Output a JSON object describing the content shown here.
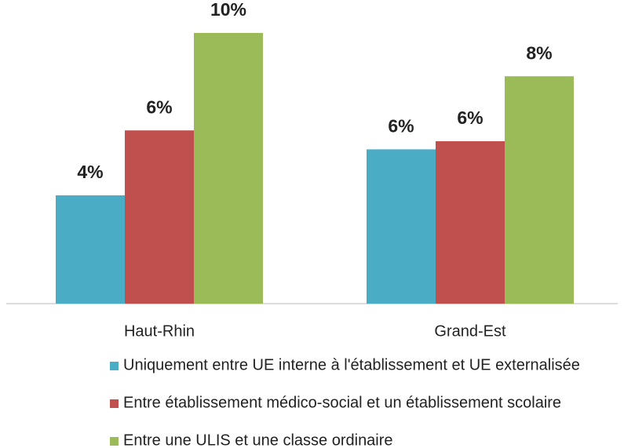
{
  "chart_data": {
    "type": "bar",
    "categories": [
      "Haut-Rhin",
      "Grand-Est"
    ],
    "series": [
      {
        "name": "Uniquement entre UE interne à l'établissement et UE externalisée",
        "color": "#4bacc6",
        "label_color": "#31859c",
        "values": [
          4.0,
          5.7
        ],
        "value_labels": [
          "4%",
          "6%"
        ]
      },
      {
        "name": "Entre établissement médico-social et un établissement scolaire",
        "color": "#c0504d",
        "label_color": "#953735",
        "values": [
          6.4,
          6.0
        ],
        "value_labels": [
          "6%",
          "6%"
        ]
      },
      {
        "name": "Entre une ULIS et une classe ordinaire",
        "color": "#9bbb59",
        "label_color": "#76923c",
        "values": [
          10.0,
          8.4
        ],
        "value_labels": [
          "10%",
          "8%"
        ]
      }
    ],
    "ylim": [
      0,
      10
    ]
  }
}
